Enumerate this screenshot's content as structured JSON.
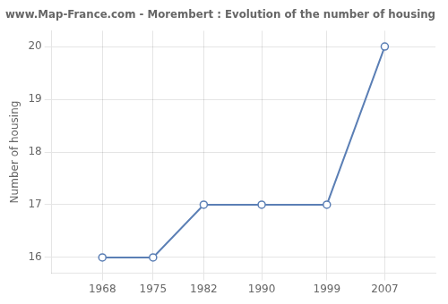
{
  "chart_data": {
    "type": "line",
    "title": "www.Map-France.com - Morembert : Evolution of the number of housing",
    "ylabel": "Number of housing",
    "x": [
      1968,
      1975,
      1982,
      1990,
      1999,
      2007
    ],
    "values": [
      16,
      16,
      17,
      17,
      17,
      20
    ],
    "color": "#5b7fb5",
    "marker": "o",
    "xlim": [
      1961,
      2014
    ],
    "ylim": [
      15.7,
      20.3
    ],
    "xticks": [
      1968,
      1975,
      1982,
      1990,
      1999,
      2007
    ],
    "yticks": [
      16,
      17,
      18,
      19,
      20
    ],
    "grid": true
  }
}
